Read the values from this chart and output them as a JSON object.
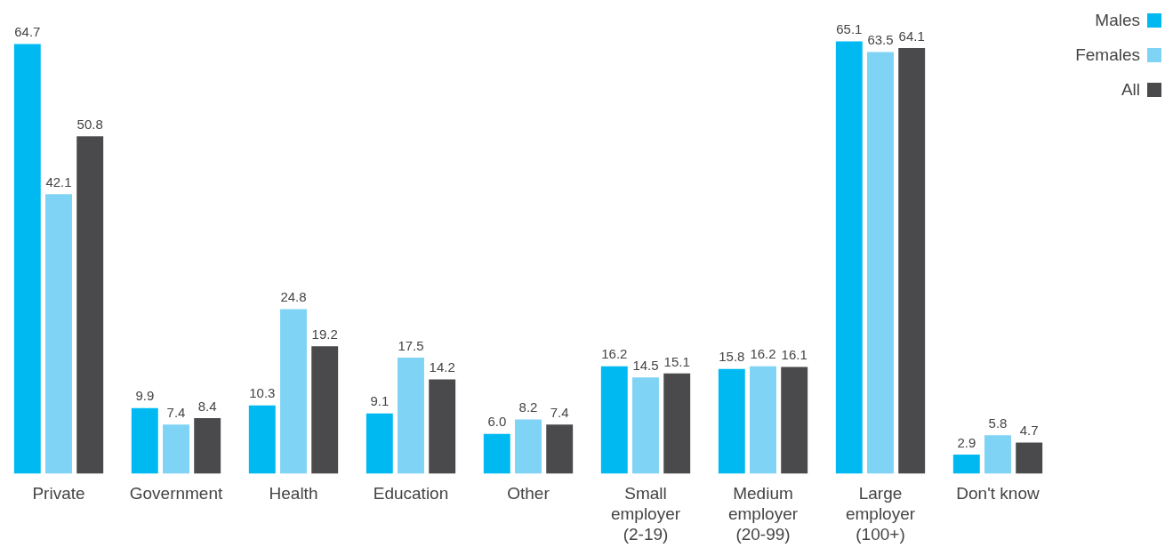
{
  "chart_data": {
    "type": "bar",
    "categories": [
      "Private",
      "Government",
      "Health",
      "Education",
      "Other",
      "Small employer (2-19)",
      "Medium employer (20-99)",
      "Large employer (100+)",
      "Don't know"
    ],
    "series": [
      {
        "name": "Males",
        "color": "#00b9f1",
        "values": [
          64.7,
          9.9,
          10.3,
          9.1,
          6.0,
          16.2,
          15.8,
          65.1,
          2.9
        ],
        "value_labels": [
          "64.7",
          "9.9",
          "10.3",
          "9.1",
          "6.0",
          "16.2",
          "15.8",
          "65.1",
          "2.9"
        ]
      },
      {
        "name": "Females",
        "color": "#7fd3f5",
        "values": [
          42.1,
          7.4,
          24.8,
          17.5,
          8.2,
          14.5,
          16.2,
          63.5,
          5.8
        ],
        "value_labels": [
          "42.1",
          "7.4",
          "24.8",
          "17.5",
          "8.2",
          "14.5",
          "16.2",
          "63.5",
          "5.8"
        ]
      },
      {
        "name": "All",
        "color": "#4a4a4d",
        "values": [
          50.8,
          8.4,
          19.2,
          14.2,
          7.4,
          15.1,
          16.1,
          64.1,
          4.7
        ],
        "value_labels": [
          "50.8",
          "8.4",
          "19.2",
          "14.2",
          "7.4",
          "15.1",
          "16.1",
          "64.1",
          "4.7"
        ]
      }
    ],
    "grid": false,
    "legend": "top right"
  }
}
